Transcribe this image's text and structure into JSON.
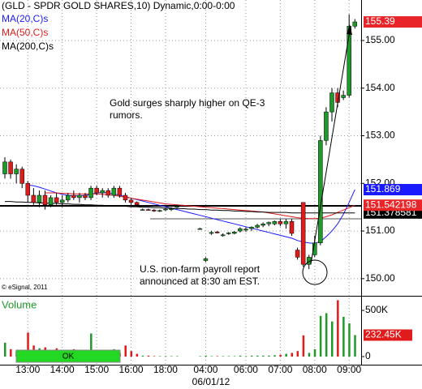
{
  "chart_data": {
    "type": "candlestick",
    "title": "(GLD - SPDR GOLD SHARES,10) Dynamic,0:00-0:00",
    "categories": [
      null,
      null,
      null,
      null,
      "13:00",
      null,
      null,
      null,
      null,
      null,
      "14:00",
      null,
      null,
      null,
      null,
      null,
      "15:00",
      null,
      null,
      null,
      null,
      null,
      "16:00",
      null,
      null,
      null,
      null,
      null,
      "18:00",
      null,
      null,
      null,
      null,
      null,
      null,
      "04:00",
      null,
      null,
      null,
      null,
      null,
      null,
      "06:00",
      null,
      null,
      null,
      null,
      null,
      "07:00",
      null,
      null,
      null,
      null,
      null,
      "08:00",
      null,
      null,
      null,
      null,
      null,
      "09:00",
      null
    ],
    "date_label": "06/01/12",
    "open": [
      152.2,
      152.45,
      152.2,
      152.3,
      152.0,
      151.75,
      151.6,
      151.75,
      151.55,
      151.7,
      151.6,
      151.65,
      151.75,
      151.7,
      151.75,
      151.7,
      151.9,
      151.8,
      151.85,
      151.75,
      151.9,
      151.75,
      151.65,
      151.6,
      151.45,
      151.45,
      151.44,
      151.42,
      151.45,
      151.45,
      151.5,
      null,
      null,
      null,
      151.05,
      150.38,
      150.95,
      150.98,
      150.9,
      150.95,
      150.95,
      151.0,
      151.02,
      151.05,
      151.08,
      151.12,
      151.15,
      151.15,
      151.2,
      151.15,
      151.2,
      150.6,
      151.6,
      150.3,
      150.5,
      150.75,
      152.9,
      153.5,
      153.9,
      153.8,
      153.85,
      155.3
    ],
    "high": [
      152.55,
      152.5,
      152.4,
      152.35,
      152.05,
      151.9,
      151.85,
      151.85,
      151.75,
      151.8,
      151.75,
      151.8,
      151.85,
      151.8,
      151.8,
      151.95,
      151.95,
      151.9,
      151.9,
      151.95,
      151.95,
      151.8,
      151.7,
      151.62,
      151.47,
      151.47,
      151.46,
      151.45,
      151.48,
      151.5,
      151.55,
      null,
      null,
      null,
      151.07,
      150.45,
      151.0,
      151.0,
      150.95,
      150.98,
      151.0,
      151.08,
      151.08,
      151.1,
      151.15,
      151.18,
      151.2,
      151.22,
      151.25,
      151.25,
      151.25,
      150.65,
      151.6,
      150.5,
      150.9,
      153.0,
      153.6,
      154.0,
      154.0,
      153.95,
      155.55,
      155.45
    ],
    "low": [
      152.1,
      152.1,
      152.0,
      151.9,
      151.6,
      151.55,
      151.5,
      151.45,
      151.5,
      151.55,
      151.5,
      151.6,
      151.65,
      151.6,
      151.65,
      151.65,
      151.75,
      151.7,
      151.7,
      151.7,
      151.7,
      151.6,
      151.55,
      151.5,
      151.43,
      151.43,
      151.4,
      151.4,
      151.42,
      151.42,
      151.48,
      null,
      null,
      null,
      151.03,
      150.35,
      150.92,
      150.95,
      150.88,
      150.92,
      150.93,
      150.97,
      150.98,
      151.0,
      151.05,
      151.08,
      151.1,
      151.12,
      151.1,
      151.05,
      150.9,
      150.4,
      150.25,
      150.2,
      150.45,
      150.7,
      152.8,
      153.3,
      153.6,
      153.75,
      153.8,
      155.25
    ],
    "close": [
      152.45,
      152.2,
      152.3,
      152.0,
      151.75,
      151.6,
      151.75,
      151.55,
      151.7,
      151.6,
      151.65,
      151.75,
      151.7,
      151.75,
      151.7,
      151.9,
      151.8,
      151.85,
      151.75,
      151.9,
      151.75,
      151.65,
      151.6,
      151.55,
      151.45,
      151.44,
      151.42,
      151.43,
      151.46,
      151.47,
      151.52,
      null,
      null,
      null,
      151.05,
      150.42,
      150.97,
      150.96,
      150.92,
      150.96,
      150.98,
      151.05,
      151.04,
      151.08,
      151.12,
      151.15,
      151.18,
      151.2,
      151.15,
      151.2,
      150.95,
      150.45,
      150.3,
      150.45,
      150.75,
      152.9,
      153.5,
      153.9,
      153.7,
      153.85,
      155.3,
      155.39
    ],
    "up_color": "#1f9a2a",
    "down_color": "#e01b1b",
    "ylim": [
      149.64,
      155.85
    ],
    "yticks": [
      {
        "value": 155,
        "label": "155.00"
      },
      {
        "value": 154,
        "label": "154.00"
      },
      {
        "value": 153,
        "label": "153.00"
      },
      {
        "value": 152,
        "label": "152.00"
      },
      {
        "value": 151,
        "label": "151.00"
      },
      {
        "value": 150,
        "label": "150.00"
      }
    ],
    "grid": true,
    "series": [
      {
        "name": "MA(20,C)s",
        "color": "#1a1aff",
        "values": [
          null,
          null,
          null,
          null,
          151.97,
          151.95,
          151.92,
          151.88,
          151.84,
          151.8,
          151.77,
          151.75,
          151.74,
          151.74,
          151.75,
          151.77,
          151.8,
          151.81,
          151.8,
          151.78,
          151.75,
          151.72,
          151.69,
          151.66,
          151.63,
          151.6,
          151.57,
          151.54,
          151.51,
          151.48,
          151.45,
          151.42,
          151.39,
          151.36,
          151.33,
          151.3,
          151.27,
          151.24,
          151.21,
          151.18,
          151.15,
          151.12,
          151.09,
          151.06,
          151.03,
          151.0,
          150.97,
          150.94,
          150.91,
          150.88,
          150.85,
          150.8,
          150.77,
          150.75,
          150.74,
          150.78,
          150.88,
          151.0,
          151.15,
          151.35,
          151.6,
          151.87
        ]
      },
      {
        "name": "MA(50,C)s",
        "color": "#e01b1b",
        "values": [
          null,
          null,
          null,
          null,
          null,
          null,
          null,
          151.8,
          151.8,
          151.8,
          151.79,
          151.79,
          151.78,
          151.78,
          151.78,
          151.78,
          151.78,
          151.77,
          151.76,
          151.75,
          151.73,
          151.71,
          151.69,
          151.67,
          151.65,
          151.63,
          151.61,
          151.59,
          151.57,
          151.56,
          151.55,
          151.54,
          151.53,
          151.52,
          151.51,
          151.5,
          151.49,
          151.48,
          151.47,
          151.46,
          151.45,
          151.44,
          151.43,
          151.42,
          151.41,
          151.4,
          151.38,
          151.36,
          151.34,
          151.32,
          151.3,
          151.28,
          151.27,
          151.26,
          151.26,
          151.27,
          151.3,
          151.34,
          151.39,
          151.44,
          151.49,
          151.54
        ]
      },
      {
        "name": "MA(200,C)s",
        "color": "#000000",
        "values": [
          151.62,
          151.62,
          151.61,
          151.61,
          151.6,
          151.6,
          151.59,
          151.59,
          151.58,
          151.58,
          151.57,
          151.57,
          151.56,
          151.56,
          151.55,
          151.55,
          151.54,
          151.54,
          151.53,
          151.53,
          151.52,
          151.52,
          151.51,
          151.51,
          151.5,
          151.5,
          151.49,
          151.49,
          151.48,
          151.48,
          151.47,
          151.47,
          151.46,
          151.46,
          151.45,
          151.45,
          151.44,
          151.44,
          151.43,
          151.43,
          151.42,
          151.42,
          151.41,
          151.41,
          151.4,
          151.4,
          151.39,
          151.39,
          151.39,
          151.39,
          151.38,
          151.38,
          151.38,
          151.38,
          151.38,
          151.38,
          151.38,
          151.38,
          151.38,
          151.38,
          151.38,
          151.38
        ]
      }
    ],
    "price_labels": [
      {
        "value": 155.39,
        "color": "#e8262a"
      },
      {
        "value": 151.869,
        "color": "#1a1aff"
      },
      {
        "value": 151.378581,
        "color": "#000000"
      },
      {
        "value": 151.542198,
        "color": "#e8262a"
      }
    ],
    "annotations": [
      {
        "lines": [
          "Gold surges sharply higher on QE-3",
          "rumors."
        ]
      },
      {
        "lines": [
          "U.S. non-farm payroll report",
          "announced at 8:30 am EST."
        ]
      }
    ],
    "copyright": "© eSignal, 2011",
    "volume": {
      "label": "Volume",
      "values": [
        150000,
        80000,
        60000,
        70000,
        260000,
        120000,
        90000,
        100000,
        60000,
        90000,
        70000,
        60000,
        80000,
        50000,
        60000,
        250000,
        70000,
        60000,
        50000,
        80000,
        40000,
        120000,
        60000,
        30000,
        10000,
        10000,
        5000,
        5000,
        5000,
        5000,
        5000,
        null,
        null,
        null,
        5000,
        10000,
        5000,
        5000,
        5000,
        5000,
        5000,
        10000,
        5000,
        10000,
        10000,
        10000,
        10000,
        15000,
        20000,
        30000,
        40000,
        60000,
        230000,
        40000,
        80000,
        440000,
        470000,
        380000,
        610000,
        430000,
        360000,
        232450
      ],
      "last_value_label": "232.45K",
      "ylim": [
        0,
        640000
      ],
      "yticks": [
        {
          "value": 500000,
          "label": "500K"
        },
        0
      ],
      "button": "OK"
    }
  }
}
